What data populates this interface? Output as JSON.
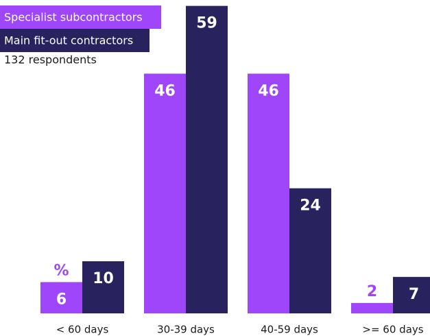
{
  "chart_data": {
    "type": "bar",
    "categories": [
      "< 60 days",
      "30-39 days",
      "40-59 days",
      ">= 60 days"
    ],
    "series": [
      {
        "name": "Specialist subcontractors",
        "color": "#a046fa",
        "values": [
          6,
          46,
          46,
          2
        ]
      },
      {
        "name": "Main fit-out contractors",
        "color": "#28235f",
        "values": [
          10,
          59,
          24,
          7
        ]
      }
    ],
    "note": "132 respondents",
    "unit_label": "%",
    "ylim": [
      0,
      60
    ],
    "legend": "top-left"
  }
}
